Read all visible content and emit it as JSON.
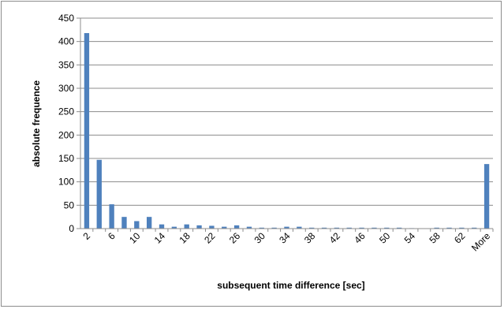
{
  "chart_data": {
    "type": "bar",
    "xlabel": "subsequent time difference [sec]",
    "ylabel": "absolute frequence",
    "ylim": [
      0,
      450
    ],
    "y_ticks": [
      0,
      50,
      100,
      150,
      200,
      250,
      300,
      350,
      400,
      450
    ],
    "grid": "horizontal",
    "legend": "none",
    "bar_color": "#4f81bd",
    "categories": [
      "2",
      "4",
      "6",
      "8",
      "10",
      "12",
      "14",
      "16",
      "18",
      "20",
      "22",
      "24",
      "26",
      "28",
      "30",
      "32",
      "34",
      "36",
      "38",
      "40",
      "42",
      "44",
      "46",
      "48",
      "50",
      "52",
      "54",
      "56",
      "58",
      "60",
      "62",
      "64",
      "More"
    ],
    "tick_labels": [
      "2",
      "6",
      "10",
      "14",
      "18",
      "22",
      "26",
      "30",
      "34",
      "38",
      "42",
      "46",
      "50",
      "54",
      "58",
      "62",
      "More"
    ],
    "values": [
      418,
      147,
      52,
      25,
      16,
      25,
      9,
      4,
      9,
      7,
      6,
      4,
      7,
      4,
      2,
      2,
      4,
      4,
      2,
      2,
      2,
      2,
      2,
      2,
      2,
      2,
      1,
      0,
      2,
      2,
      2,
      2,
      138
    ]
  }
}
